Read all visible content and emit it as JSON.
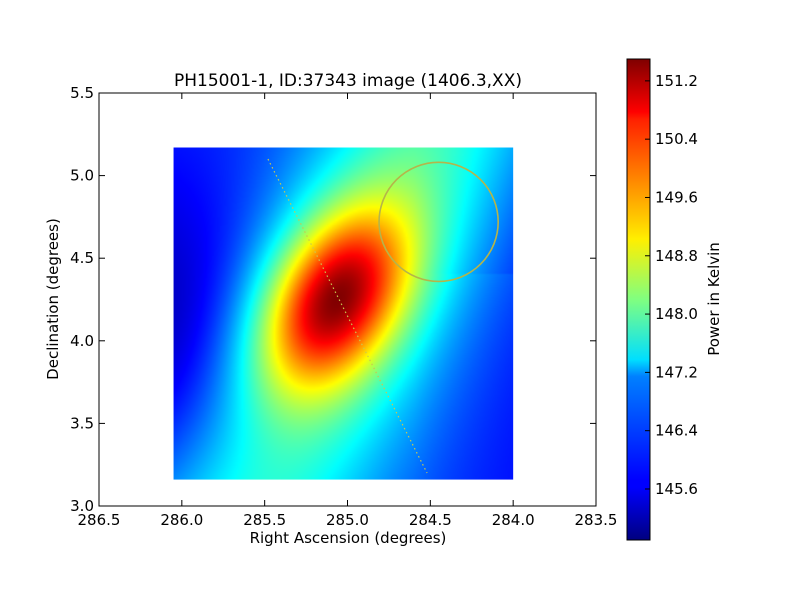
{
  "chart_data": {
    "type": "heatmap",
    "title": "PH15001-1, ID:37343 image (1406.3,XX)",
    "xlabel": "Right Ascension (degrees)",
    "ylabel": "Declination (degrees)",
    "xlim": [
      286.5,
      283.5
    ],
    "ylim": [
      3.0,
      5.5
    ],
    "xticks": [
      "286.5",
      "286.0",
      "285.5",
      "285.0",
      "284.5",
      "284.0",
      "283.5"
    ],
    "yticks": [
      "3.0",
      "3.5",
      "4.0",
      "4.5",
      "5.0",
      "5.5"
    ],
    "image_extent": {
      "ra": [
        286.05,
        284.0
      ],
      "dec": [
        3.16,
        5.17
      ]
    },
    "grid": false,
    "colormap": "jet",
    "colorbar": {
      "label": "Power in Kelvin",
      "range": [
        144.9,
        151.5
      ],
      "ticks": [
        "145.6",
        "146.4",
        "147.2",
        "148.0",
        "148.8",
        "149.6",
        "150.4",
        "151.2"
      ]
    },
    "peak": {
      "ra": 285.08,
      "dec": 4.25,
      "value": 151.5
    },
    "minimum": {
      "ra": 286.05,
      "dec": 3.95,
      "value": 144.9
    },
    "track_line": {
      "ra": [
        285.48,
        284.52
      ],
      "dec": [
        5.1,
        3.2
      ],
      "color": "#c8c850",
      "style": "dotted"
    },
    "circle": {
      "ra": 284.45,
      "dec": 4.72,
      "radius_deg": 0.36,
      "color": "#b5b54a"
    }
  }
}
